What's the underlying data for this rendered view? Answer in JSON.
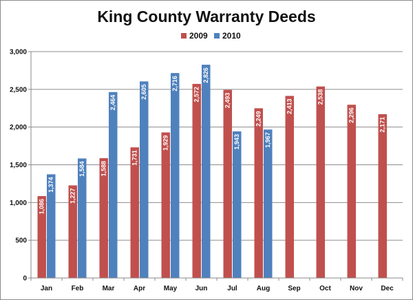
{
  "chart_data": {
    "type": "bar",
    "title": "King County Warranty Deeds",
    "xlabel": "",
    "ylabel": "",
    "categories": [
      "Jan",
      "Feb",
      "Mar",
      "Apr",
      "May",
      "Jun",
      "Jul",
      "Aug",
      "Sep",
      "Oct",
      "Nov",
      "Dec"
    ],
    "series": [
      {
        "name": "2009",
        "color": "#c0504d",
        "values": [
          1086,
          1227,
          1588,
          1731,
          1929,
          2572,
          2493,
          2249,
          2413,
          2538,
          2296,
          2171
        ],
        "labels": [
          "1,086",
          "1,227",
          "1,588",
          "1,731",
          "1,929",
          "2,572",
          "2,493",
          "2,249",
          "2,413",
          "2,538",
          "2,296",
          "2,171"
        ]
      },
      {
        "name": "2010",
        "color": "#4f81bd",
        "values": [
          1374,
          1584,
          2464,
          2605,
          2716,
          2826,
          1943,
          1967,
          null,
          null,
          null,
          null
        ],
        "labels": [
          "1,374",
          "1,584",
          "2,464",
          "2,605",
          "2,716",
          "2,826",
          "1,943",
          "1,967",
          null,
          null,
          null,
          null
        ]
      }
    ],
    "ylim": [
      0,
      3000
    ],
    "yticks": [
      0,
      500,
      1000,
      1500,
      2000,
      2500,
      3000
    ],
    "ytick_labels": [
      "0",
      "500",
      "1,000",
      "1,500",
      "2,000",
      "2,500",
      "3,000"
    ],
    "grid": true,
    "legend_position": "top-center",
    "gridline_color": "#8c8c8c",
    "axis_color": "#888888"
  }
}
